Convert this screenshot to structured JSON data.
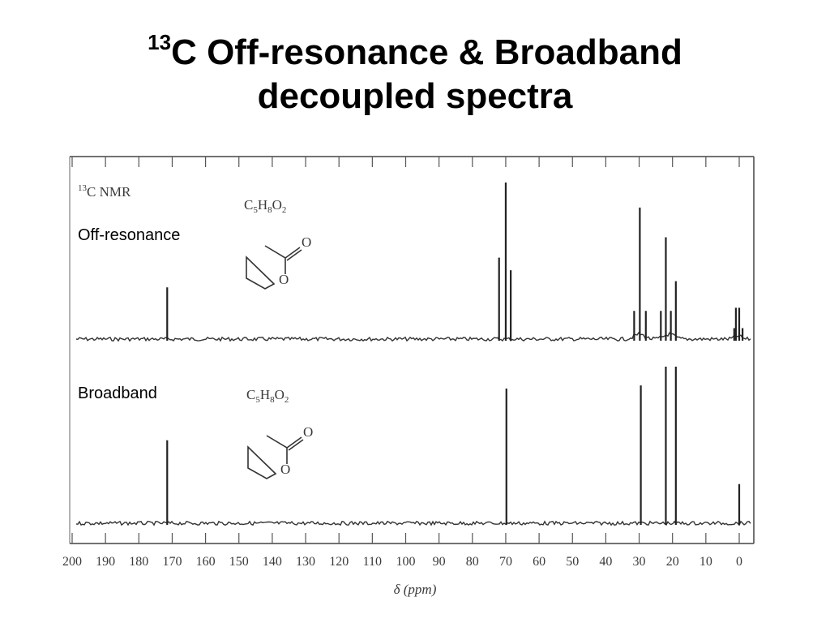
{
  "title": {
    "superscript": "13",
    "line1": "C Off-resonance & Broadband",
    "line2": "decoupled spectra"
  },
  "nmr_label": {
    "sup": "13",
    "text": "C NMR"
  },
  "formula": {
    "c": "C",
    "c_sub": "5",
    "h": "H",
    "h_sub": "8",
    "o": "O",
    "o_sub": "2"
  },
  "structure_atoms": {
    "carbonyl_o": "O",
    "ring_o": "O"
  },
  "panels": {
    "top_label": "Off-resonance",
    "bottom_label": "Broadband"
  },
  "chart_data": {
    "type": "line",
    "xlabel": "δ (ppm)",
    "x_reversed": true,
    "xlim": [
      200,
      0
    ],
    "x_ticks": [
      200,
      190,
      180,
      170,
      160,
      150,
      140,
      130,
      120,
      110,
      100,
      90,
      80,
      70,
      60,
      50,
      40,
      30,
      20,
      10,
      0
    ],
    "tick_labels": [
      "200",
      "190",
      "180",
      "170",
      "160",
      "150",
      "140",
      "130",
      "120",
      "110",
      "100",
      "90",
      "80",
      "70",
      "60",
      "50",
      "40",
      "30",
      "20",
      "10",
      "0"
    ],
    "series": [
      {
        "name": "Off-resonance",
        "peaks": [
          {
            "ppm": 171.5,
            "rel_height": 0.33
          },
          {
            "ppm": 72.0,
            "rel_height": 0.52
          },
          {
            "ppm": 70.0,
            "rel_height": 1.0
          },
          {
            "ppm": 68.5,
            "rel_height": 0.44
          },
          {
            "ppm": 31.5,
            "rel_height": 0.18
          },
          {
            "ppm": 29.8,
            "rel_height": 0.84
          },
          {
            "ppm": 28.0,
            "rel_height": 0.18
          },
          {
            "ppm": 23.5,
            "rel_height": 0.18
          },
          {
            "ppm": 22.0,
            "rel_height": 0.65
          },
          {
            "ppm": 20.5,
            "rel_height": 0.18
          },
          {
            "ppm": 19.0,
            "rel_height": 0.37
          },
          {
            "ppm": 1.5,
            "rel_height": 0.07
          },
          {
            "ppm": 1.0,
            "rel_height": 0.2
          },
          {
            "ppm": 0.0,
            "rel_height": 0.2
          },
          {
            "ppm": -1.0,
            "rel_height": 0.07
          }
        ]
      },
      {
        "name": "Broadband",
        "peaks": [
          {
            "ppm": 171.5,
            "rel_height": 0.53
          },
          {
            "ppm": 69.8,
            "rel_height": 0.86
          },
          {
            "ppm": 29.5,
            "rel_height": 0.88
          },
          {
            "ppm": 22.0,
            "rel_height": 1.0
          },
          {
            "ppm": 19.0,
            "rel_height": 1.0
          },
          {
            "ppm": 0.0,
            "rel_height": 0.25
          }
        ]
      }
    ]
  }
}
